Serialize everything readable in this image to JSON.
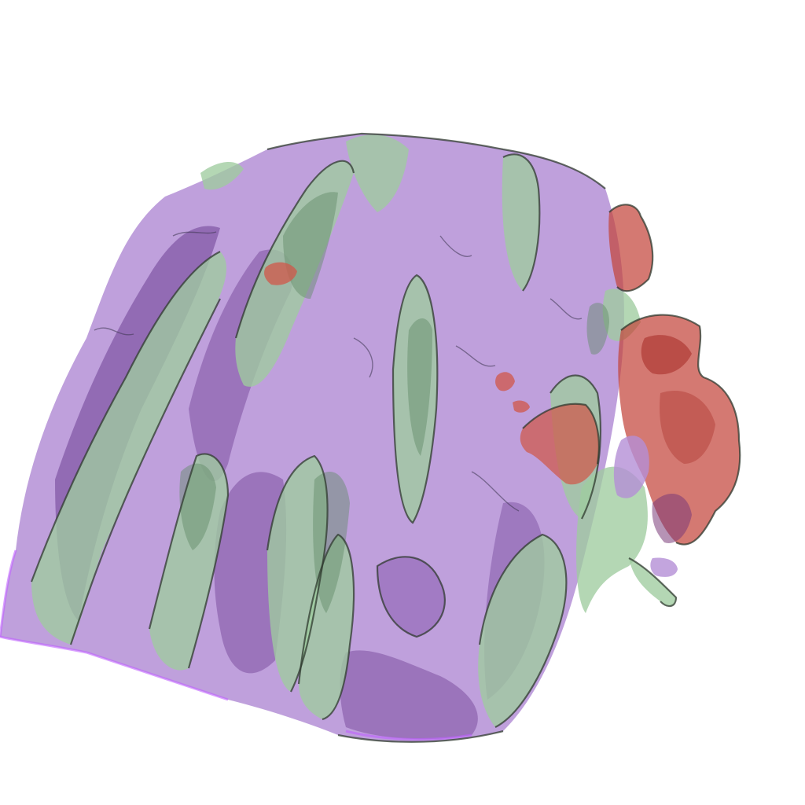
{
  "scene": {
    "background": "#ffffff",
    "colors": {
      "violet": "#b48fd6",
      "violet_dark": "#6e3f93",
      "green": "#9fcc9f",
      "green_dark": "#5f8a66",
      "red": "#c4453c",
      "magenta_edge": "#c060ff"
    }
  }
}
